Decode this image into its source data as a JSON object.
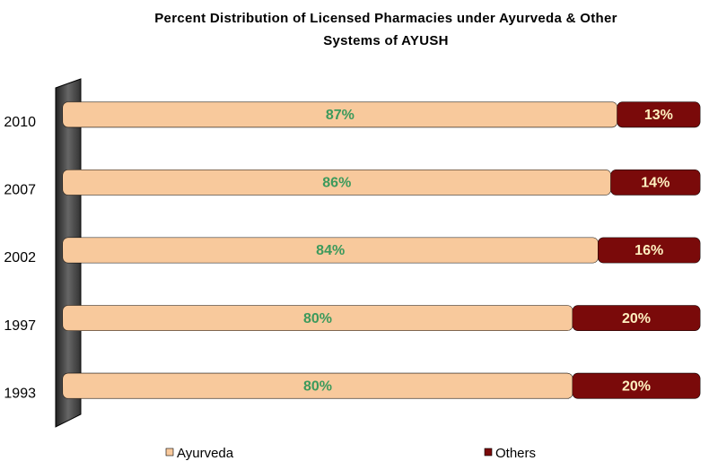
{
  "chart_data": {
    "type": "stacked-bar-horizontal",
    "title": "Percent Distribution of Licensed Pharmacies under Ayurveda & Other\nSystems of AYUSH",
    "categories": [
      "2010",
      "2007",
      "2002",
      "1997",
      "1993"
    ],
    "series": [
      {
        "name": "Ayurveda",
        "color": "#f8c99c",
        "label_color": "#3c9a5c",
        "values": [
          87,
          86,
          84,
          80,
          80
        ],
        "value_labels": [
          "87%",
          "86%",
          "84%",
          "80%",
          "80%"
        ]
      },
      {
        "name": "Others",
        "color": "#7a0a0a",
        "label_color": "#fff0c0",
        "values": [
          13,
          14,
          16,
          20,
          20
        ],
        "value_labels": [
          "13%",
          "14%",
          "16%",
          "20%",
          "20%"
        ]
      }
    ],
    "xlim": [
      0,
      100
    ]
  }
}
